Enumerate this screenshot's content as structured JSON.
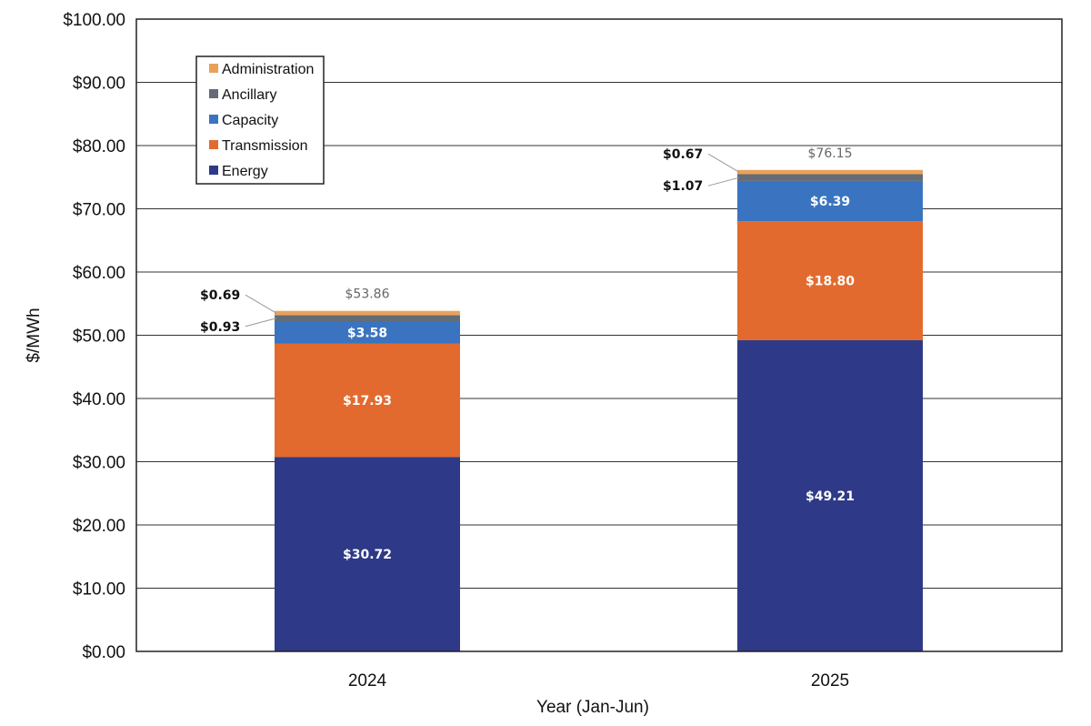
{
  "chart_data": {
    "type": "bar",
    "stacked": true,
    "title": "",
    "xlabel": "Year (Jan-Jun)",
    "ylabel": "$/MWh",
    "ylim": [
      0,
      100
    ],
    "y_ticks": [
      "$0.00",
      "$10.00",
      "$20.00",
      "$30.00",
      "$40.00",
      "$50.00",
      "$60.00",
      "$70.00",
      "$80.00",
      "$90.00",
      "$100.00"
    ],
    "grid": true,
    "legend_position": "top-left",
    "categories": [
      "2024",
      "2025"
    ],
    "series": [
      {
        "name": "Energy",
        "color": "#2E3A87",
        "values": [
          30.72,
          49.21
        ],
        "labels": [
          "$30.72",
          "$49.21"
        ]
      },
      {
        "name": "Transmission",
        "color": "#E36A2E",
        "values": [
          17.93,
          18.8
        ],
        "labels": [
          "$17.93",
          "$18.80"
        ]
      },
      {
        "name": "Capacity",
        "color": "#3A74C0",
        "values": [
          3.58,
          6.39
        ],
        "labels": [
          "$3.58",
          "$6.39"
        ]
      },
      {
        "name": "Ancillary",
        "color": "#636B76",
        "values": [
          0.93,
          1.07
        ],
        "labels": [
          "$0.93",
          "$1.07"
        ]
      },
      {
        "name": "Administration",
        "color": "#E9A15A",
        "values": [
          0.69,
          0.67
        ],
        "labels": [
          "$0.69",
          "$0.67"
        ]
      }
    ],
    "totals": [
      "$53.86",
      "$76.15"
    ]
  }
}
